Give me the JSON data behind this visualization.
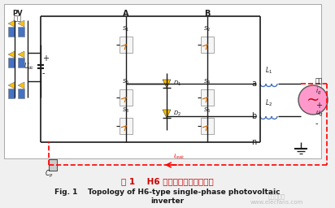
{
  "title_cn": "图 1    H6 桥单相光伏逆变器拓扑",
  "title_en_1": "Fig. 1    Topology of H6-type single-phase photovoltaic",
  "title_en_2": "inverter",
  "bg_color": "#f0f0f0",
  "circuit_bg": "#ffffff",
  "line_color": "#1a1a1a",
  "red_color": "#ff0000",
  "blue_color": "#4472c4",
  "yellow_color": "#ffc000",
  "green_color": "#70ad47",
  "pink_color": "#ff99cc",
  "watermark": "电子发烧友\nwww.elecfans.com"
}
